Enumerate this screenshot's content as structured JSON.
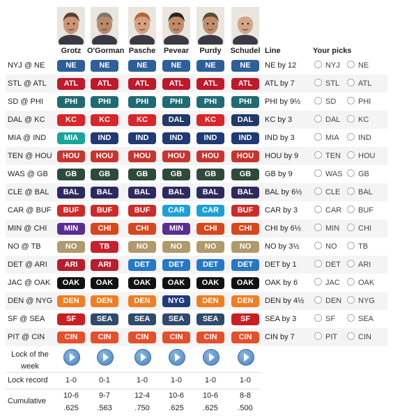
{
  "panelists": [
    "Grotz",
    "O'Gorman",
    "Pasche",
    "Pevear",
    "Purdy",
    "Schudel"
  ],
  "headers": {
    "line": "Line",
    "your_picks": "Your picks"
  },
  "colors": {
    "NE": "#2f5f9a",
    "NYJ": "#2f5f9a",
    "ATL": "#c0192a",
    "STL": "#1d3c7a",
    "PHI": "#1f6b73",
    "SD": "#1f6b73",
    "KC": "#d8262a",
    "DAL": "#1f3a66",
    "MIA": "#1aa59a",
    "IND": "#1f3a74",
    "HOU": "#c8352f",
    "TEN": "#3a6ea8",
    "GB": "#2e4a3a",
    "WAS": "#7a1a1a",
    "BAL": "#2c2a5e",
    "CLE": "#8a3a10",
    "BUF": "#cf2a2a",
    "CAR": "#1ea0d9",
    "MIN": "#5b2d90",
    "CHI": "#d8471c",
    "NO": "#b09a6c",
    "TB": "#c9212a",
    "ARI": "#b51f2e",
    "DET": "#2678c6",
    "OAK": "#111111",
    "JAC": "#1a6a7a",
    "DEN": "#f07e22",
    "NYG": "#1e3a7a",
    "SEA": "#2f4a6a",
    "SF": "#c81e24",
    "CIN": "#e4502a",
    "PIT": "#222222"
  },
  "games": [
    {
      "matchup": "NYJ @ NE",
      "picks": [
        "NE",
        "NE",
        "NE",
        "NE",
        "NE",
        "NE"
      ],
      "line": "NE by 12",
      "away": "NYJ",
      "home": "NE"
    },
    {
      "matchup": "STL @ ATL",
      "picks": [
        "ATL",
        "ATL",
        "ATL",
        "ATL",
        "ATL",
        "ATL"
      ],
      "line": "ATL by 7",
      "away": "STL",
      "home": "ATL"
    },
    {
      "matchup": "SD @ PHI",
      "picks": [
        "PHI",
        "PHI",
        "PHI",
        "PHI",
        "PHI",
        "PHI"
      ],
      "line": "PHI by 9½",
      "away": "SD",
      "home": "PHI"
    },
    {
      "matchup": "DAL @ KC",
      "picks": [
        "KC",
        "KC",
        "KC",
        "DAL",
        "KC",
        "DAL"
      ],
      "line": "KC by 3",
      "away": "DAL",
      "home": "KC"
    },
    {
      "matchup": "MIA @ IND",
      "picks": [
        "MIA",
        "IND",
        "IND",
        "IND",
        "IND",
        "IND"
      ],
      "line": "IND by 3",
      "away": "MIA",
      "home": "IND"
    },
    {
      "matchup": "TEN @ HOU",
      "picks": [
        "HOU",
        "HOU",
        "HOU",
        "HOU",
        "HOU",
        "HOU"
      ],
      "line": "HOU by 9",
      "away": "TEN",
      "home": "HOU"
    },
    {
      "matchup": "WAS @ GB",
      "picks": [
        "GB",
        "GB",
        "GB",
        "GB",
        "GB",
        "GB"
      ],
      "line": "GB by 9",
      "away": "WAS",
      "home": "GB"
    },
    {
      "matchup": "CLE @ BAL",
      "picks": [
        "BAL",
        "BAL",
        "BAL",
        "BAL",
        "BAL",
        "BAL"
      ],
      "line": "BAL by 6½",
      "away": "CLE",
      "home": "BAL"
    },
    {
      "matchup": "CAR @ BUF",
      "picks": [
        "BUF",
        "BUF",
        "BUF",
        "CAR",
        "CAR",
        "BUF"
      ],
      "line": "CAR by 3",
      "away": "CAR",
      "home": "BUF"
    },
    {
      "matchup": "MIN @ CHI",
      "picks": [
        "MIN",
        "CHI",
        "CHI",
        "MIN",
        "CHI",
        "CHI"
      ],
      "line": "CHI by 6½",
      "away": "MIN",
      "home": "CHI"
    },
    {
      "matchup": "NO @ TB",
      "picks": [
        "NO",
        "TB",
        "NO",
        "NO",
        "NO",
        "NO"
      ],
      "line": "NO by 3½",
      "away": "NO",
      "home": "TB"
    },
    {
      "matchup": "DET @ ARI",
      "picks": [
        "ARI",
        "ARI",
        "DET",
        "DET",
        "DET",
        "DET"
      ],
      "line": "DET by 1",
      "away": "DET",
      "home": "ARI"
    },
    {
      "matchup": "JAC @ OAK",
      "picks": [
        "OAK",
        "OAK",
        "OAK",
        "OAK",
        "OAK",
        "OAK"
      ],
      "line": "OAK by 6",
      "away": "JAC",
      "home": "OAK"
    },
    {
      "matchup": "DEN @ NYG",
      "picks": [
        "DEN",
        "DEN",
        "DEN",
        "NYG",
        "DEN",
        "DEN"
      ],
      "line": "DEN by 4½",
      "away": "DEN",
      "home": "NYG"
    },
    {
      "matchup": "SF @ SEA",
      "picks": [
        "SF",
        "SEA",
        "SEA",
        "SEA",
        "SEA",
        "SF"
      ],
      "line": "SEA by 3",
      "away": "SF",
      "home": "SEA"
    },
    {
      "matchup": "PIT @ CIN",
      "picks": [
        "CIN",
        "CIN",
        "CIN",
        "CIN",
        "CIN",
        "CIN"
      ],
      "line": "CIN by 7",
      "away": "PIT",
      "home": "CIN"
    }
  ],
  "lock_label_1": "Lock of the",
  "lock_label_2": "week",
  "lock_record_label": "Lock record",
  "lock_record": [
    "1-0",
    "0-1",
    "1-0",
    "1-0",
    "1-0",
    "1-0"
  ],
  "cumulative_label": "Cumulative",
  "cumulative_record": [
    "10-6",
    "9-7",
    "12-4",
    "10-6",
    "10-6",
    "8-8"
  ],
  "cumulative_pct": [
    ".625",
    ".563",
    ".750",
    ".625",
    ".625",
    ".500"
  ]
}
